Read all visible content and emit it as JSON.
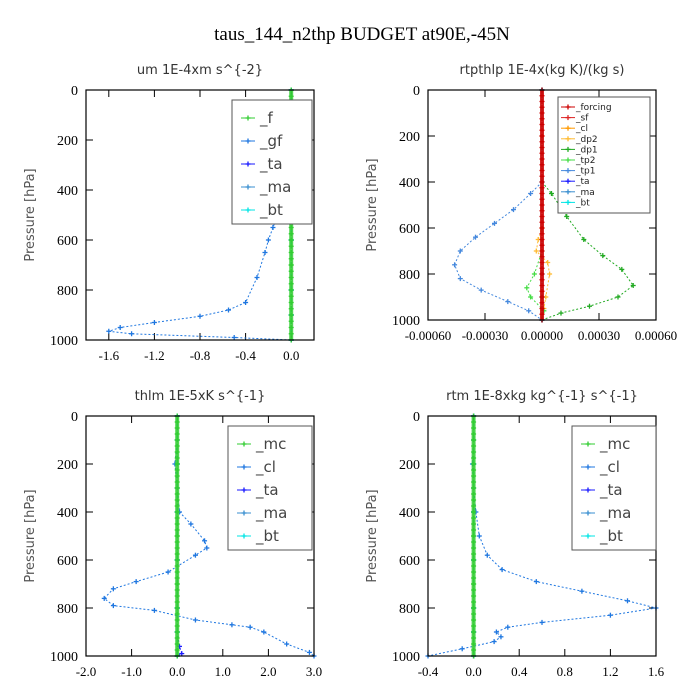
{
  "suptitle": "taus_144_n2thp  BUDGET at90E,-45N",
  "chart_data": [
    {
      "type": "line",
      "title": "um   1E-4xm s^{-2}",
      "ylabel": "Pressure [hPa]",
      "xlim": [
        -1.8,
        0.2
      ],
      "ylim": [
        1000,
        0
      ],
      "xticks": [
        -1.6,
        -1.2,
        -0.8,
        -0.4,
        0.0
      ],
      "xtick_labels": [
        "-1.6",
        "-1.2",
        "-0.8",
        "-0.4",
        "0.0"
      ],
      "yticks": [
        0,
        200,
        400,
        600,
        800,
        1000
      ],
      "ytick_labels": [
        "0",
        "200",
        "400",
        "600",
        "800",
        "1000"
      ],
      "legend_position": "top-right",
      "legend_style": "large",
      "series": [
        {
          "name": "_f",
          "color": "#32cd32",
          "x": [
            0,
            0,
            0,
            0,
            0,
            0,
            0,
            0,
            0,
            0,
            0
          ],
          "y": [
            0,
            100,
            200,
            300,
            400,
            500,
            600,
            700,
            800,
            900,
            1000
          ]
        },
        {
          "name": "_gf",
          "color": "#1f77e0",
          "x": [
            0,
            0.0,
            -0.02,
            -0.03,
            -0.05,
            -0.08,
            -0.12,
            -0.16,
            -0.2,
            -0.23,
            -0.3,
            -0.4,
            -0.55,
            -0.8,
            -1.2,
            -1.5,
            -1.6,
            -1.4,
            -0.5,
            0
          ],
          "y": [
            0,
            100,
            200,
            300,
            400,
            450,
            500,
            550,
            600,
            650,
            750,
            850,
            880,
            905,
            930,
            950,
            965,
            975,
            990,
            1000
          ]
        },
        {
          "name": "_ta",
          "color": "#1a1aff",
          "x": [
            0,
            0,
            0,
            0,
            0,
            0,
            0
          ],
          "y": [
            0,
            200,
            400,
            600,
            800,
            900,
            1000
          ]
        },
        {
          "name": "_ma",
          "color": "#3a8fd0",
          "x": [
            0,
            0.01,
            0.01,
            0.0,
            0.0,
            0.0,
            0
          ],
          "y": [
            0,
            200,
            400,
            600,
            800,
            900,
            1000
          ]
        },
        {
          "name": "_bt",
          "color": "#00e5e5",
          "x": [
            0,
            0,
            0,
            0,
            0,
            0,
            0
          ],
          "y": [
            0,
            200,
            400,
            600,
            800,
            900,
            1000
          ]
        }
      ]
    },
    {
      "type": "line",
      "title": "rtpthlp   1E-4x(kg K)/(kg s)",
      "ylabel": "Pressure [hPa]",
      "xlim": [
        -0.0006,
        0.0006
      ],
      "ylim": [
        1000,
        0
      ],
      "xticks": [
        -0.0006,
        -0.0003,
        0.0,
        0.0003,
        0.0006
      ],
      "xtick_labels": [
        "-0.00060",
        "-0.00030",
        "0.00000",
        "0.00030",
        "0.00060"
      ],
      "yticks": [
        0,
        200,
        400,
        600,
        800,
        1000
      ],
      "ytick_labels": [
        "0",
        "200",
        "400",
        "600",
        "800",
        "1000"
      ],
      "legend_position": "top-right",
      "legend_style": "small",
      "series": [
        {
          "name": "_forcing",
          "color": "#cc0000",
          "x": [
            0,
            0,
            0,
            0,
            0,
            0,
            0
          ],
          "y": [
            0,
            200,
            400,
            600,
            800,
            900,
            1000
          ]
        },
        {
          "name": "_sf",
          "color": "#dd2222",
          "x": [
            0,
            0,
            0,
            0,
            0,
            0,
            0
          ],
          "y": [
            0,
            200,
            400,
            600,
            800,
            900,
            1000
          ]
        },
        {
          "name": "_cl",
          "color": "#ff9900",
          "x": [
            0,
            0,
            0,
            0,
            0,
            0,
            0
          ],
          "y": [
            0,
            200,
            400,
            600,
            800,
            900,
            1000
          ]
        },
        {
          "name": "_dp2",
          "color": "#ffbb33",
          "x": [
            0,
            0,
            0,
            -2e-05,
            -3e-05,
            3e-05,
            4e-05,
            2e-05,
            1e-05,
            0
          ],
          "y": [
            0,
            400,
            600,
            650,
            700,
            750,
            800,
            900,
            950,
            1000
          ]
        },
        {
          "name": "_dp1",
          "color": "#22aa22",
          "x": [
            0,
            0,
            5e-05,
            0.00013,
            0.00022,
            0.00032,
            0.00042,
            0.00048,
            0.0004,
            0.00025,
            0.0001,
            0
          ],
          "y": [
            0,
            400,
            450,
            550,
            650,
            720,
            780,
            850,
            900,
            940,
            970,
            1000
          ]
        },
        {
          "name": "_tp2",
          "color": "#44dd44",
          "x": [
            0,
            0,
            -4e-05,
            -8e-05,
            -6e-05,
            1e-05,
            0
          ],
          "y": [
            0,
            700,
            800,
            860,
            900,
            960,
            1000
          ]
        },
        {
          "name": "_tp1",
          "color": "#4488dd",
          "x": [
            0,
            0,
            -6e-05,
            -0.00015,
            -0.00025,
            -0.00035,
            -0.00043,
            -0.00046,
            -0.00043,
            -0.00032,
            -0.00018,
            -7e-05,
            0
          ],
          "y": [
            0,
            400,
            450,
            520,
            580,
            640,
            700,
            760,
            820,
            870,
            920,
            960,
            1000
          ]
        },
        {
          "name": "_ta",
          "color": "#1a1aff",
          "x": [
            0,
            0,
            0,
            0,
            0
          ],
          "y": [
            0,
            400,
            800,
            900,
            1000
          ]
        },
        {
          "name": "_ma",
          "color": "#3a8fd0",
          "x": [
            0,
            0,
            0,
            0,
            0
          ],
          "y": [
            0,
            400,
            800,
            900,
            1000
          ]
        },
        {
          "name": "_bt",
          "color": "#00e5e5",
          "x": [
            0,
            0,
            0,
            0,
            0
          ],
          "y": [
            0,
            400,
            800,
            900,
            1000
          ]
        }
      ]
    },
    {
      "type": "line",
      "title": "thlm   1E-5xK s^{-1}",
      "ylabel": "Pressure [hPa]",
      "xlim": [
        -2.0,
        3.0
      ],
      "ylim": [
        1000,
        0
      ],
      "xticks": [
        -2.0,
        -1.0,
        0.0,
        1.0,
        2.0,
        3.0
      ],
      "xtick_labels": [
        "-2.0",
        "-1.0",
        "0.0",
        "1.0",
        "2.0",
        "3.0"
      ],
      "yticks": [
        0,
        200,
        400,
        600,
        800,
        1000
      ],
      "ytick_labels": [
        "0",
        "200",
        "400",
        "600",
        "800",
        "1000"
      ],
      "legend_position": "top-right",
      "legend_style": "large",
      "series": [
        {
          "name": "_mc",
          "color": "#32cd32",
          "x": [
            0,
            0,
            0,
            0,
            0,
            0,
            0,
            0,
            0,
            0,
            0
          ],
          "y": [
            0,
            100,
            200,
            300,
            400,
            500,
            600,
            700,
            800,
            900,
            1000
          ]
        },
        {
          "name": "_cl",
          "color": "#1f77e0",
          "x": [
            0,
            0,
            -0.05,
            0.0,
            0.05,
            0.3,
            0.6,
            0.65,
            0.4,
            -0.2,
            -0.9,
            -1.4,
            -1.6,
            -1.4,
            -0.5,
            0.4,
            1.2,
            1.6,
            1.9,
            2.4,
            2.9,
            3.0
          ],
          "y": [
            0,
            100,
            200,
            300,
            400,
            450,
            520,
            550,
            580,
            650,
            690,
            720,
            760,
            790,
            810,
            850,
            870,
            880,
            900,
            950,
            985,
            1000
          ]
        },
        {
          "name": "_ta",
          "color": "#1a1aff",
          "x": [
            0,
            0,
            0,
            0,
            0,
            0,
            0.05,
            0.1,
            0
          ],
          "y": [
            0,
            200,
            400,
            600,
            800,
            900,
            960,
            990,
            1000
          ]
        },
        {
          "name": "_ma",
          "color": "#3a8fd0",
          "x": [
            0,
            0,
            0,
            0,
            0,
            0,
            0
          ],
          "y": [
            0,
            200,
            400,
            600,
            800,
            900,
            1000
          ]
        },
        {
          "name": "_bt",
          "color": "#00e5e5",
          "x": [
            0,
            0,
            0,
            0,
            0,
            0,
            0
          ],
          "y": [
            0,
            200,
            400,
            600,
            800,
            900,
            1000
          ]
        }
      ]
    },
    {
      "type": "line",
      "title": "rtm   1E-8xkg kg^{-1} s^{-1}",
      "ylabel": "Pressure [hPa]",
      "xlim": [
        -0.4,
        1.6
      ],
      "ylim": [
        1000,
        0
      ],
      "xticks": [
        -0.4,
        0.0,
        0.4,
        0.8,
        1.2,
        1.6
      ],
      "xtick_labels": [
        "-0.4",
        "0.0",
        "0.4",
        "0.8",
        "1.2",
        "1.6"
      ],
      "yticks": [
        0,
        200,
        400,
        600,
        800,
        1000
      ],
      "ytick_labels": [
        "0",
        "200",
        "400",
        "600",
        "800",
        "1000"
      ],
      "legend_position": "top-right",
      "legend_style": "large",
      "series": [
        {
          "name": "_mc",
          "color": "#32cd32",
          "x": [
            0,
            0,
            0,
            0,
            0,
            0,
            0,
            0,
            0,
            0,
            0
          ],
          "y": [
            0,
            100,
            200,
            300,
            400,
            500,
            600,
            700,
            800,
            900,
            1000
          ]
        },
        {
          "name": "_cl",
          "color": "#1f77e0",
          "x": [
            0,
            0,
            -0.01,
            0.0,
            0.02,
            0.05,
            0.12,
            0.25,
            0.55,
            0.95,
            1.35,
            1.6,
            1.2,
            0.6,
            0.3,
            0.2,
            0.24,
            0.18,
            -0.1,
            -0.4
          ],
          "y": [
            0,
            100,
            200,
            300,
            400,
            500,
            580,
            640,
            690,
            730,
            770,
            800,
            830,
            860,
            880,
            900,
            920,
            940,
            970,
            1000
          ]
        },
        {
          "name": "_ta",
          "color": "#1a1aff",
          "x": [
            0,
            0,
            0,
            0,
            0,
            0,
            0
          ],
          "y": [
            0,
            200,
            400,
            600,
            800,
            900,
            1000
          ]
        },
        {
          "name": "_ma",
          "color": "#3a8fd0",
          "x": [
            0,
            0,
            0,
            0,
            0,
            0,
            0
          ],
          "y": [
            0,
            200,
            400,
            600,
            800,
            900,
            1000
          ]
        },
        {
          "name": "_bt",
          "color": "#00e5e5",
          "x": [
            0,
            0,
            0,
            0,
            0,
            0,
            0
          ],
          "y": [
            0,
            200,
            400,
            600,
            800,
            900,
            1000
          ]
        }
      ]
    }
  ]
}
